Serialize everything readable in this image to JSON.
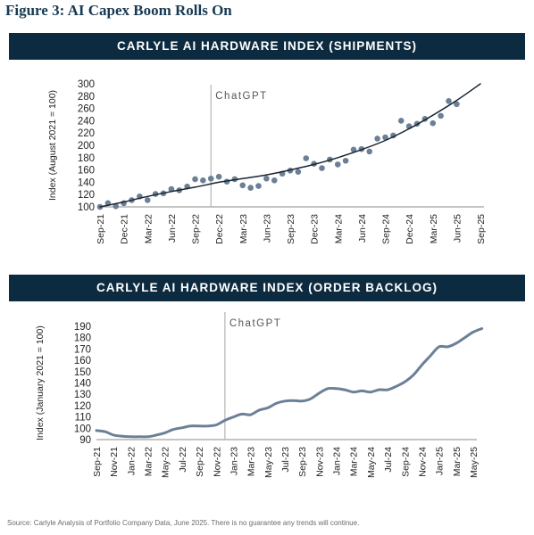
{
  "figure_title": "Figure 3: AI Capex Boom Rolls On",
  "source": "Source: Carlyle Analysis of Portfolio Company Data, June 2025. There is no guarantee any trends will continue.",
  "colors": {
    "banner": "#0d2b40",
    "series": "#6b8096",
    "trend": "#1a2530",
    "marker_line": "#b5b5b5"
  },
  "chart_data": [
    {
      "type": "scatter",
      "title": "CARLYLE AI HARDWARE INDEX (SHIPMENTS)",
      "ylabel": "Index (August 2021 = 100)",
      "ylim": [
        100,
        300
      ],
      "yticks": [
        100,
        120,
        140,
        160,
        180,
        200,
        220,
        240,
        260,
        280,
        300
      ],
      "x_tick_labels": [
        "Sep-21",
        "Dec-21",
        "Mar-22",
        "Jun-22",
        "Sep-22",
        "Dec-22",
        "Mar-23",
        "Jun-23",
        "Sep-23",
        "Dec-23",
        "Mar-24",
        "Jun-24",
        "Sep-24",
        "Dec-24",
        "Mar-25",
        "Jun-25",
        "Sep-25"
      ],
      "annotation": "ChatGPT",
      "annotation_month": "Nov-22",
      "series": [
        {
          "kind": "scatter",
          "x": [
            "Sep-21",
            "Oct-21",
            "Nov-21",
            "Dec-21",
            "Jan-22",
            "Feb-22",
            "Mar-22",
            "Apr-22",
            "May-22",
            "Jun-22",
            "Jul-22",
            "Aug-22",
            "Sep-22",
            "Oct-22",
            "Nov-22",
            "Dec-22",
            "Jan-23",
            "Feb-23",
            "Mar-23",
            "Apr-23",
            "May-23",
            "Jun-23",
            "Jul-23",
            "Aug-23",
            "Sep-23",
            "Oct-23",
            "Nov-23",
            "Dec-23",
            "Jan-24",
            "Feb-24",
            "Mar-24",
            "Apr-24",
            "May-24",
            "Jun-24",
            "Jul-24",
            "Aug-24",
            "Sep-24",
            "Oct-24",
            "Nov-24",
            "Dec-24",
            "Jan-25",
            "Feb-25",
            "Mar-25",
            "Apr-25",
            "May-25",
            "Jun-25"
          ],
          "values": [
            100,
            106,
            101,
            106,
            111,
            117,
            111,
            121,
            122,
            129,
            127,
            133,
            145,
            143,
            146,
            149,
            141,
            145,
            135,
            131,
            134,
            146,
            143,
            154,
            159,
            157,
            179,
            170,
            163,
            177,
            169,
            175,
            193,
            194,
            190,
            211,
            213,
            216,
            240,
            231,
            235,
            243,
            236,
            248,
            272,
            267
          ]
        },
        {
          "kind": "trend",
          "x": [
            "Sep-21",
            "Dec-21",
            "Mar-22",
            "Jun-22",
            "Sep-22",
            "Dec-22",
            "Mar-23",
            "Jun-23",
            "Sep-23",
            "Dec-23",
            "Mar-24",
            "Jun-24",
            "Sep-24",
            "Dec-24",
            "Mar-25",
            "Jun-25",
            "Sep-25"
          ],
          "values": [
            100,
            108,
            117,
            125,
            132,
            140,
            146,
            152,
            160,
            169,
            180,
            193,
            208,
            227,
            249,
            273,
            300
          ]
        }
      ]
    },
    {
      "type": "line",
      "title": "CARLYLE AI HARDWARE INDEX (ORDER BACKLOG)",
      "ylabel": "Index (January 2021 = 100)",
      "ylim": [
        90,
        190
      ],
      "yticks": [
        90,
        100,
        110,
        120,
        130,
        140,
        150,
        160,
        170,
        180,
        190
      ],
      "x_tick_labels": [
        "Sep-21",
        "Nov-21",
        "Jan-22",
        "Mar-22",
        "May-22",
        "Jul-22",
        "Sep-22",
        "Nov-22",
        "Jan-23",
        "Mar-23",
        "May-23",
        "Jul-23",
        "Sep-23",
        "Nov-23",
        "Jan-24",
        "Mar-24",
        "May-24",
        "Jul-24",
        "Sep-24",
        "Nov-24",
        "Jan-25",
        "Mar-25",
        "May-25"
      ],
      "annotation": "ChatGPT",
      "annotation_month": "Dec-22",
      "series": [
        {
          "kind": "line",
          "x": [
            "Sep-21",
            "Oct-21",
            "Nov-21",
            "Dec-21",
            "Jan-22",
            "Feb-22",
            "Mar-22",
            "Apr-22",
            "May-22",
            "Jun-22",
            "Jul-22",
            "Aug-22",
            "Sep-22",
            "Oct-22",
            "Nov-22",
            "Dec-22",
            "Jan-23",
            "Feb-23",
            "Mar-23",
            "Apr-23",
            "May-23",
            "Jun-23",
            "Jul-23",
            "Aug-23",
            "Sep-23",
            "Oct-23",
            "Nov-23",
            "Dec-23",
            "Jan-24",
            "Feb-24",
            "Mar-24",
            "Apr-24",
            "May-24",
            "Jun-24",
            "Jul-24",
            "Aug-24",
            "Sep-24",
            "Oct-24",
            "Nov-24",
            "Dec-24",
            "Jan-25",
            "Feb-25",
            "Mar-25",
            "Apr-25",
            "May-25",
            "Jun-25"
          ],
          "values": [
            98,
            97,
            94,
            93,
            92.5,
            92.5,
            92.5,
            94,
            96,
            99,
            100.5,
            102,
            102,
            102,
            103,
            107,
            110,
            112.5,
            112,
            116,
            118,
            122,
            124,
            124.5,
            124,
            126,
            131,
            135,
            135,
            134,
            132,
            133,
            132,
            134,
            134,
            137,
            141,
            147,
            156,
            164,
            172,
            172,
            175,
            180,
            185,
            188
          ]
        }
      ]
    }
  ]
}
